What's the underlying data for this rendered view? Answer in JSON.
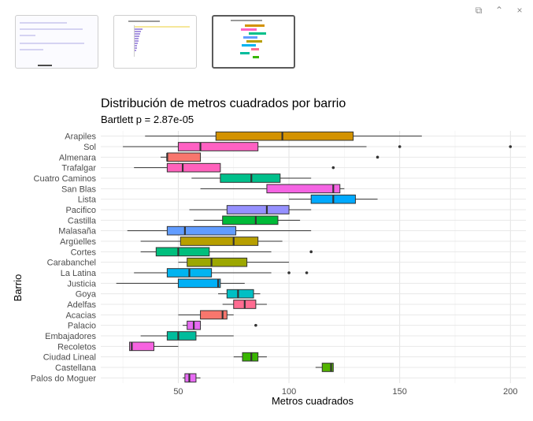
{
  "window": {
    "buttons": [
      {
        "name": "copy-icon",
        "glyph": "⧉"
      },
      {
        "name": "collapse-icon",
        "glyph": "⌃"
      },
      {
        "name": "close-icon",
        "glyph": "×"
      }
    ]
  },
  "thumbnails": [
    {
      "name": "thumbnail-1",
      "kind": "code",
      "active": false
    },
    {
      "name": "thumbnail-2",
      "kind": "bar-chart",
      "active": false
    },
    {
      "name": "thumbnail-3",
      "kind": "boxplot",
      "active": true
    }
  ],
  "chart_data": {
    "type": "boxplot",
    "orientation": "horizontal",
    "title": "Distribución de metros cuadrados por barrio",
    "subtitle": "Bartlett p = 2.87e-05",
    "xlabel": "Metros cuadrados",
    "ylabel": "Barrio",
    "xlim": [
      15,
      207
    ],
    "xticks": [
      50,
      100,
      150,
      200
    ],
    "grid": true,
    "legend": "none",
    "box_stroke": "#333333",
    "series": [
      {
        "name": "Arapiles",
        "color": "#D39200",
        "min": 35,
        "q1": 67,
        "median": 97,
        "q3": 129,
        "max": 160,
        "outliers": []
      },
      {
        "name": "Sol",
        "color": "#FF61C3",
        "min": 25,
        "q1": 50,
        "median": 60,
        "q3": 86,
        "max": 135,
        "outliers": [
          150,
          200
        ]
      },
      {
        "name": "Almenara",
        "color": "#F8766D",
        "min": 42,
        "q1": 45,
        "median": 45,
        "q3": 60,
        "max": 60,
        "outliers": [
          140
        ]
      },
      {
        "name": "Trafalgar",
        "color": "#FF62BC",
        "min": 30,
        "q1": 45,
        "median": 52,
        "q3": 69,
        "max": 69,
        "outliers": [
          120
        ]
      },
      {
        "name": "Cuatro Caminos",
        "color": "#00C08B",
        "min": 56,
        "q1": 69,
        "median": 83,
        "q3": 96,
        "max": 110,
        "outliers": []
      },
      {
        "name": "San Blas",
        "color": "#F564E3",
        "min": 60,
        "q1": 90,
        "median": 120,
        "q3": 123,
        "max": 125,
        "outliers": []
      },
      {
        "name": "Lista",
        "color": "#00A9FF",
        "min": 100,
        "q1": 110,
        "median": 120,
        "q3": 130,
        "max": 140,
        "outliers": []
      },
      {
        "name": "Pacifico",
        "color": "#9590FF",
        "min": 55,
        "q1": 72,
        "median": 90,
        "q3": 100,
        "max": 110,
        "outliers": []
      },
      {
        "name": "Castilla",
        "color": "#00BA38",
        "min": 57,
        "q1": 70,
        "median": 85,
        "q3": 95,
        "max": 105,
        "outliers": []
      },
      {
        "name": "Malasaña",
        "color": "#619CFF",
        "min": 27,
        "q1": 45,
        "median": 53,
        "q3": 76,
        "max": 110,
        "outliers": []
      },
      {
        "name": "Argüelles",
        "color": "#B79F00",
        "min": 33,
        "q1": 51,
        "median": 75,
        "q3": 86,
        "max": 97,
        "outliers": []
      },
      {
        "name": "Cortes",
        "color": "#00BF7D",
        "min": 33,
        "q1": 40,
        "median": 50,
        "q3": 64,
        "max": 92,
        "outliers": [
          110
        ]
      },
      {
        "name": "Carabanchel",
        "color": "#9CA700",
        "min": 50,
        "q1": 54,
        "median": 65,
        "q3": 81,
        "max": 100,
        "outliers": []
      },
      {
        "name": "La Latina",
        "color": "#00B4F0",
        "min": 30,
        "q1": 45,
        "median": 55,
        "q3": 65,
        "max": 92,
        "outliers": [
          100,
          108
        ]
      },
      {
        "name": "Justicia",
        "color": "#00B0F6",
        "min": 22,
        "q1": 50,
        "median": 68,
        "q3": 69,
        "max": 80,
        "outliers": []
      },
      {
        "name": "Goya",
        "color": "#00BFC4",
        "min": 68,
        "q1": 72,
        "median": 77,
        "q3": 84,
        "max": 87,
        "outliers": []
      },
      {
        "name": "Adelfas",
        "color": "#FF6C91",
        "min": 70,
        "q1": 75,
        "median": 80,
        "q3": 85,
        "max": 90,
        "outliers": []
      },
      {
        "name": "Acacias",
        "color": "#F8766D",
        "min": 50,
        "q1": 60,
        "median": 70,
        "q3": 72,
        "max": 75,
        "outliers": []
      },
      {
        "name": "Palacio",
        "color": "#E76BF3",
        "min": 52,
        "q1": 54,
        "median": 57,
        "q3": 60,
        "max": 60,
        "outliers": [
          85
        ]
      },
      {
        "name": "Embajadores",
        "color": "#00BC9C",
        "min": 33,
        "q1": 45,
        "median": 50,
        "q3": 58,
        "max": 75,
        "outliers": []
      },
      {
        "name": "Recoletos",
        "color": "#F763E0",
        "min": 28,
        "q1": 28,
        "median": 29,
        "q3": 39,
        "max": 50,
        "outliers": []
      },
      {
        "name": "Ciudad Lineal",
        "color": "#39B600",
        "min": 75,
        "q1": 79,
        "median": 83,
        "q3": 86,
        "max": 90,
        "outliers": []
      },
      {
        "name": "Castellana",
        "color": "#53B400",
        "min": 112,
        "q1": 115,
        "median": 119,
        "q3": 120,
        "max": 120,
        "outliers": []
      },
      {
        "name": "Palos do Moguer",
        "color": "#E76BF3",
        "min": 52,
        "q1": 53,
        "median": 55,
        "q3": 58,
        "max": 60,
        "outliers": []
      }
    ]
  }
}
